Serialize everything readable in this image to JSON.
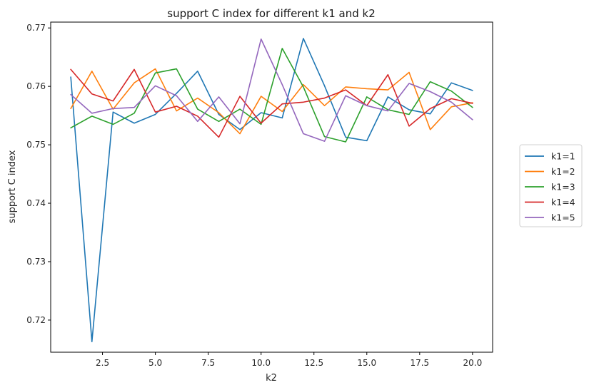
{
  "chart_data": {
    "type": "line",
    "title": "support C index for different k1 and k2",
    "xlabel": "k2",
    "ylabel": "support C index",
    "xlim": [
      0.05,
      20.95
    ],
    "ylim": [
      0.7145,
      0.771
    ],
    "xticks": [
      2.5,
      5.0,
      7.5,
      10.0,
      12.5,
      15.0,
      17.5,
      20.0
    ],
    "xtick_labels": [
      "2.5",
      "5.0",
      "7.5",
      "10.0",
      "12.5",
      "15.0",
      "17.5",
      "20.0"
    ],
    "yticks": [
      0.72,
      0.73,
      0.74,
      0.75,
      0.76,
      0.77
    ],
    "ytick_labels": [
      "0.72",
      "0.73",
      "0.74",
      "0.75",
      "0.76",
      "0.77"
    ],
    "grid": false,
    "legend_position": "right",
    "x": [
      1,
      2,
      3,
      4,
      5,
      6,
      7,
      8,
      9,
      10,
      11,
      12,
      13,
      14,
      15,
      16,
      17,
      18,
      19,
      20
    ],
    "series": [
      {
        "name": "k1=1",
        "color": "#1f77b4",
        "values": [
          0.7616,
          0.7163,
          0.7556,
          0.7537,
          0.7552,
          0.7588,
          0.7626,
          0.7552,
          0.7526,
          0.7555,
          0.7546,
          0.7682,
          0.7601,
          0.7513,
          0.7507,
          0.7582,
          0.756,
          0.7553,
          0.7606,
          0.7593
        ]
      },
      {
        "name": "k1=2",
        "color": "#ff7f0e",
        "values": [
          0.7562,
          0.7626,
          0.7561,
          0.7606,
          0.763,
          0.7558,
          0.758,
          0.7555,
          0.7519,
          0.7583,
          0.7557,
          0.7603,
          0.7567,
          0.7599,
          0.7596,
          0.7594,
          0.7624,
          0.7526,
          0.7565,
          0.7572
        ]
      },
      {
        "name": "k1=3",
        "color": "#2ca02c",
        "values": [
          0.7529,
          0.7549,
          0.7535,
          0.7554,
          0.7623,
          0.763,
          0.7561,
          0.754,
          0.7561,
          0.7535,
          0.7665,
          0.7599,
          0.7514,
          0.7505,
          0.7582,
          0.756,
          0.7552,
          0.7608,
          0.7592,
          0.7564
        ]
      },
      {
        "name": "k1=4",
        "color": "#d62728",
        "values": [
          0.7629,
          0.7587,
          0.7575,
          0.7629,
          0.7556,
          0.7566,
          0.7549,
          0.7513,
          0.7583,
          0.7537,
          0.757,
          0.7573,
          0.758,
          0.7594,
          0.7567,
          0.762,
          0.7532,
          0.7562,
          0.7579,
          0.7571
        ]
      },
      {
        "name": "k1=5",
        "color": "#9467bd",
        "values": [
          0.7586,
          0.7554,
          0.7562,
          0.7564,
          0.7601,
          0.7584,
          0.754,
          0.7582,
          0.7536,
          0.7681,
          0.7603,
          0.7519,
          0.7506,
          0.7584,
          0.7567,
          0.7558,
          0.7605,
          0.7591,
          0.7573,
          0.7543
        ]
      }
    ]
  }
}
